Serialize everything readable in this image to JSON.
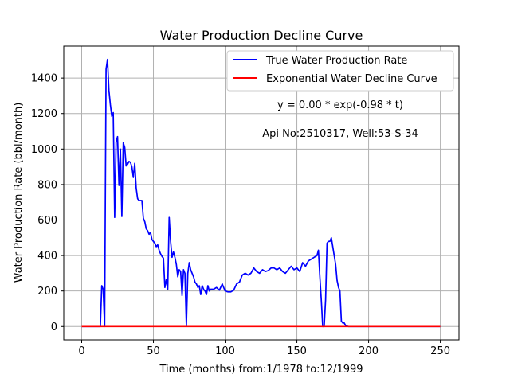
{
  "chart_data": {
    "type": "line",
    "title": "Water Production Decline Curve",
    "xlabel": "Time (months) from:1/1978 to:12/1999",
    "ylabel": "Water Production Rate (bbl/month)",
    "xlim": [
      -12.5,
      263
    ],
    "ylim": [
      -75,
      1580
    ],
    "xticks": [
      0,
      50,
      100,
      150,
      200,
      250
    ],
    "yticks": [
      0,
      200,
      400,
      600,
      800,
      1000,
      1200,
      1400
    ],
    "grid": true,
    "legend_position": "top-right",
    "annotations": [
      "y = 0.00 * exp(-0.98 * t)",
      "Api No:2510317, Well:53-S-34"
    ],
    "series": [
      {
        "name": "True Water Production Rate",
        "color": "#0000ff",
        "x": [
          0,
          13,
          14,
          15,
          16,
          17,
          18,
          19,
          20,
          21,
          22,
          23,
          24,
          25,
          26,
          27,
          28,
          29,
          30,
          31,
          32,
          33,
          34,
          35,
          36,
          37,
          38,
          39,
          40,
          41,
          42,
          43,
          44,
          45,
          46,
          47,
          48,
          49,
          50,
          51,
          52,
          53,
          54,
          55,
          56,
          57,
          58,
          59,
          60,
          61,
          62,
          63,
          64,
          65,
          66,
          67,
          68,
          69,
          70,
          71,
          72,
          73,
          74,
          75,
          76,
          77,
          78,
          79,
          80,
          81,
          82,
          83,
          84,
          85,
          86,
          87,
          88,
          89,
          90,
          92,
          94,
          96,
          98,
          100,
          102,
          104,
          106,
          108,
          110,
          112,
          114,
          116,
          118,
          120,
          122,
          124,
          126,
          128,
          130,
          132,
          134,
          136,
          138,
          140,
          142,
          144,
          146,
          148,
          150,
          152,
          154,
          156,
          158,
          160,
          162,
          164,
          165,
          166,
          167,
          168,
          169,
          170,
          171,
          172,
          173,
          174,
          175,
          176,
          177,
          178,
          179,
          180,
          181,
          182,
          183,
          184,
          185,
          186,
          190,
          200,
          210,
          220,
          230,
          240,
          250
        ],
        "y": [
          0,
          0,
          230,
          210,
          0,
          1450,
          1505,
          1330,
          1250,
          1185,
          1205,
          615,
          1040,
          1070,
          795,
          1000,
          620,
          1035,
          1010,
          905,
          915,
          930,
          925,
          900,
          840,
          920,
          780,
          720,
          710,
          710,
          710,
          610,
          590,
          550,
          540,
          520,
          530,
          490,
          480,
          470,
          450,
          460,
          430,
          410,
          395,
          385,
          220,
          265,
          210,
          615,
          480,
          390,
          420,
          390,
          350,
          280,
          320,
          310,
          175,
          320,
          300,
          5,
          300,
          360,
          320,
          300,
          280,
          250,
          240,
          220,
          230,
          180,
          230,
          210,
          200,
          180,
          230,
          200,
          210,
          210,
          220,
          205,
          240,
          200,
          195,
          195,
          205,
          240,
          250,
          290,
          300,
          290,
          300,
          330,
          310,
          300,
          320,
          310,
          315,
          330,
          330,
          320,
          330,
          310,
          300,
          320,
          340,
          320,
          330,
          310,
          360,
          340,
          370,
          380,
          390,
          400,
          430,
          280,
          150,
          0,
          0,
          150,
          470,
          480,
          480,
          500,
          450,
          400,
          350,
          260,
          220,
          200,
          30,
          20,
          20,
          5,
          2,
          0,
          0,
          0,
          0,
          0,
          0,
          0,
          0
        ]
      },
      {
        "name": "Exponential Water Decline Curve",
        "color": "#ff0000",
        "x": [
          0,
          50,
          100,
          150,
          200,
          250
        ],
        "y": [
          0,
          0,
          0,
          0,
          0,
          0
        ]
      }
    ]
  }
}
